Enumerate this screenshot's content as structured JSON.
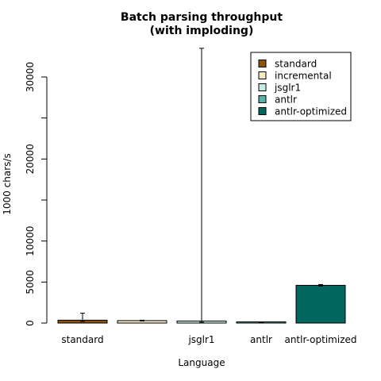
{
  "chart_data": {
    "type": "bar",
    "title": "Batch parsing throughput",
    "subtitle": "(with imploding)",
    "xlabel": "Language",
    "ylabel": "1000 chars/s",
    "ylim": [
      0,
      30000
    ],
    "yticks": [
      0,
      5000,
      10000,
      20000,
      30000
    ],
    "categories": [
      "standard",
      "incremental",
      "jsglr1",
      "antlr",
      "antlr-optimized"
    ],
    "xtick_labels": [
      "standard",
      "",
      "jsglr1",
      "antlr",
      "antlr-optimized"
    ],
    "series": [
      {
        "name": "standard",
        "value": 350,
        "err_low": 200,
        "err_high": 1200,
        "color": "#8c510a"
      },
      {
        "name": "incremental",
        "value": 300,
        "err_low": 250,
        "err_high": 350,
        "color": "#f6e8c3"
      },
      {
        "name": "jsglr1",
        "value": 250,
        "err_low": 100,
        "err_high": 33500,
        "color": "#c7eae5"
      },
      {
        "name": "antlr",
        "value": 50,
        "err_low": 30,
        "err_high": 80,
        "color": "#5ab4ac"
      },
      {
        "name": "antlr-optimized",
        "value": 4600,
        "err_low": 4500,
        "err_high": 4700,
        "color": "#01665e"
      }
    ],
    "legend": {
      "position": "top-right",
      "entries": [
        "standard",
        "incremental",
        "jsglr1",
        "antlr",
        "antlr-optimized"
      ]
    },
    "grid": false
  }
}
